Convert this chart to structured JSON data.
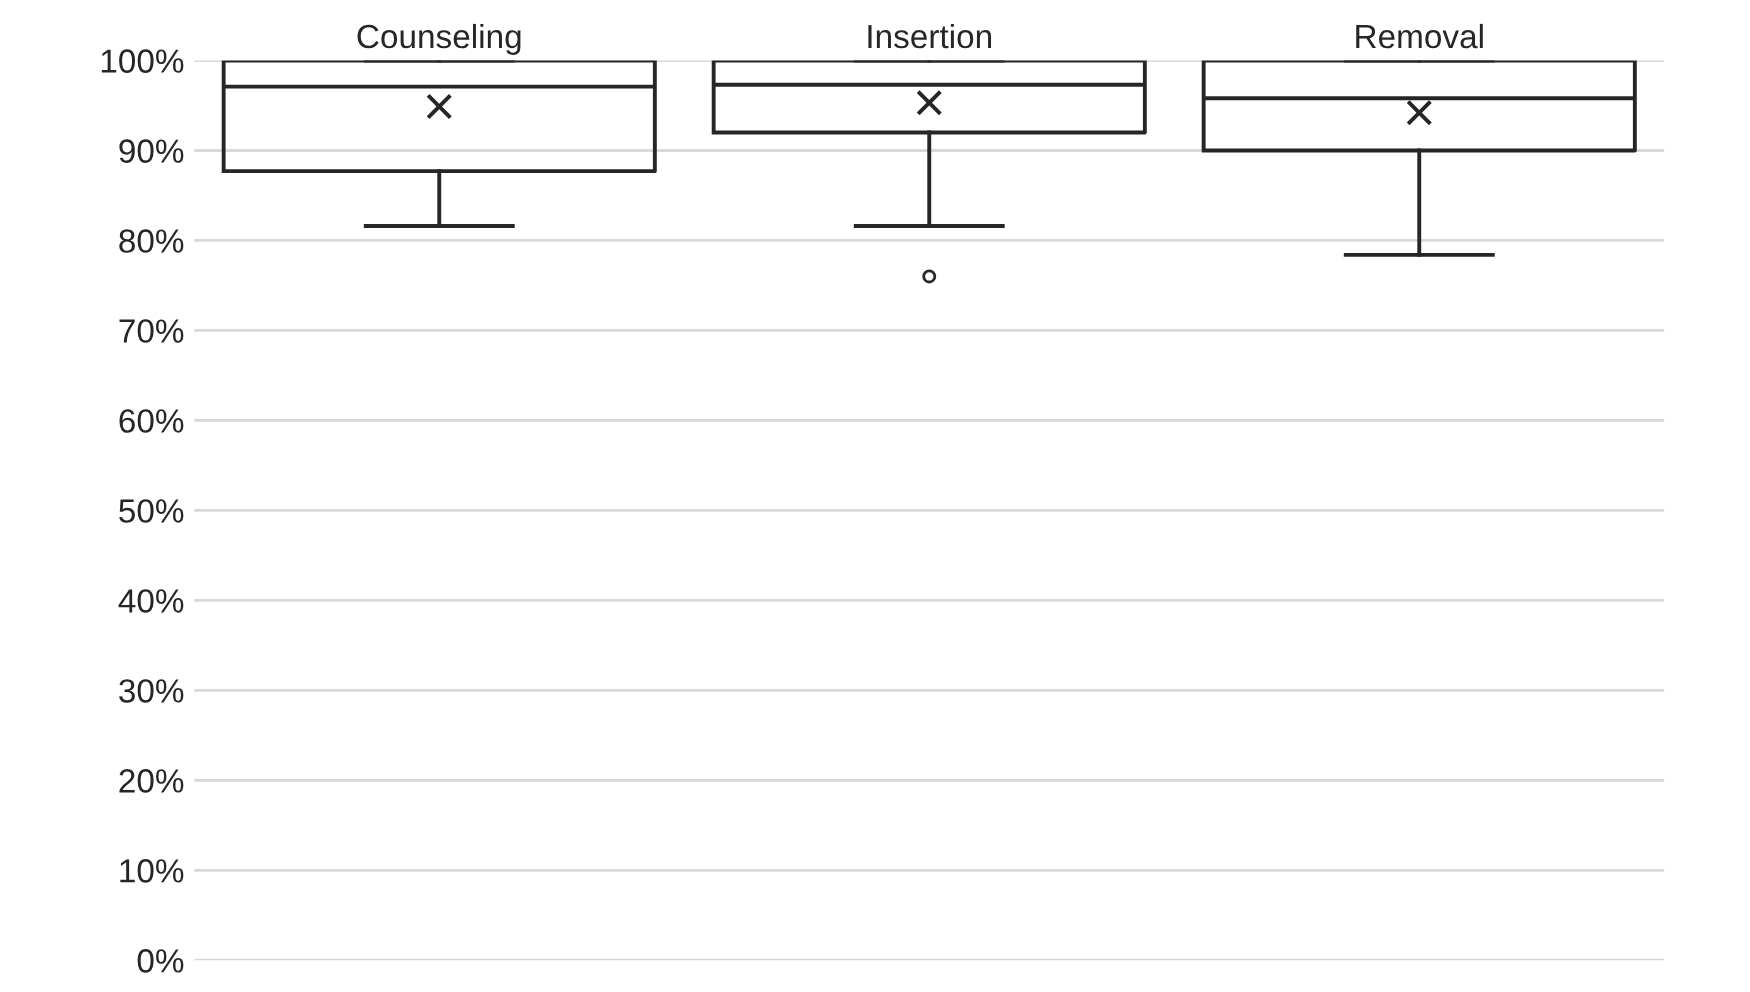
{
  "chart_data": {
    "type": "box",
    "categories": [
      "Counseling",
      "Insertion",
      "Removal"
    ],
    "boxes": [
      {
        "low": 81.6,
        "q1": 87.7,
        "median": 97.1,
        "q3": 100,
        "high": 100,
        "mean": 94.9
      },
      {
        "low": 81.6,
        "q1": 92,
        "median": 97.3,
        "q3": 100,
        "high": 100,
        "mean": 95.3,
        "outliers": [
          76
        ]
      },
      {
        "low": 78.4,
        "q1": 90,
        "median": 95.8,
        "q3": 100,
        "high": 100,
        "mean": 94.2
      }
    ],
    "color": "#262626",
    "ylim": [
      0,
      100
    ],
    "yticks": [
      {
        "value": 0,
        "label": "0%"
      },
      {
        "value": 10,
        "label": "10%"
      },
      {
        "value": 20,
        "label": "20%"
      },
      {
        "value": 30,
        "label": "30%"
      },
      {
        "value": 40,
        "label": "40%"
      },
      {
        "value": 50,
        "label": "50%"
      },
      {
        "value": 60,
        "label": "60%"
      },
      {
        "value": 70,
        "label": "70%"
      },
      {
        "value": 80,
        "label": "80%"
      },
      {
        "value": 90,
        "label": "90%"
      },
      {
        "value": 100,
        "label": "100%"
      }
    ],
    "grid": "y"
  }
}
